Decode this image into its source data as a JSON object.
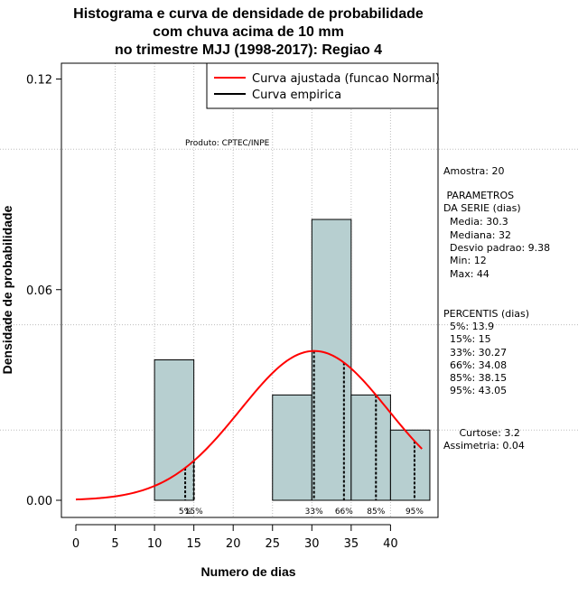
{
  "chart_data": {
    "type": "bar",
    "title_lines": [
      "Histograma e curva de densidade de probabilidade",
      "com chuva acima de 10 mm",
      "no trimestre MJJ (1998-2017): Regiao 4"
    ],
    "xlabel": "Numero de dias",
    "ylabel": "Densidade de probabilidade",
    "xlim": [
      -2,
      45
    ],
    "ylim": [
      0,
      0.12
    ],
    "x_ticks": [
      0,
      5,
      10,
      15,
      20,
      25,
      30,
      35,
      40
    ],
    "y_ticks": [
      0.0,
      0.06,
      0.12
    ],
    "y_tick_labels": [
      "0.00",
      "0.06",
      "0.12"
    ],
    "bins": [
      {
        "start": 10,
        "end": 15,
        "density": 0.04
      },
      {
        "start": 15,
        "end": 20,
        "density": 0.0
      },
      {
        "start": 20,
        "end": 25,
        "density": 0.0
      },
      {
        "start": 25,
        "end": 30,
        "density": 0.03
      },
      {
        "start": 30,
        "end": 35,
        "density": 0.08
      },
      {
        "start": 35,
        "end": 40,
        "density": 0.03
      },
      {
        "start": 40,
        "end": 45,
        "density": 0.02
      }
    ],
    "normal_fit": {
      "mean": 30.3,
      "sd": 9.38,
      "x_from": 0,
      "x_to": 44
    },
    "percentile_lines": [
      {
        "label": "5%",
        "x": 13.9
      },
      {
        "label": "15%",
        "x": 15
      },
      {
        "label": "33%",
        "x": 30.27
      },
      {
        "label": "66%",
        "x": 34.08
      },
      {
        "label": "85%",
        "x": 38.15
      },
      {
        "label": "95%",
        "x": 43.05
      }
    ],
    "legend": [
      {
        "label": "Curva ajustada (funcao Normal)",
        "color": "#ff0000"
      },
      {
        "label": "Curva empirica",
        "color": "#000000"
      }
    ],
    "legend_position": "top-right",
    "annotation": "Produto: CPTEC/INPE",
    "grid": true,
    "bar_color": "#b7cfd0",
    "fit_color": "#ff0000"
  },
  "side_panel": {
    "sample": "Amostra: 20",
    "params_title": [
      " PARAMETROS",
      "DA SERIE (dias)"
    ],
    "params": [
      "  Media: 30.3",
      "  Mediana: 32",
      "  Desvio padrao: 9.38",
      "  Min: 12",
      "  Max: 44"
    ],
    "percentiles_title": "PERCENTIS (dias)",
    "percentiles": [
      "  5%: 13.9",
      "  15%: 15",
      "  33%: 30.27",
      "  66%: 34.08",
      "  85%: 38.15",
      "  95%: 43.05"
    ],
    "curtose": "     Curtose: 3.2",
    "assimetria": "Assimetria: 0.04"
  }
}
